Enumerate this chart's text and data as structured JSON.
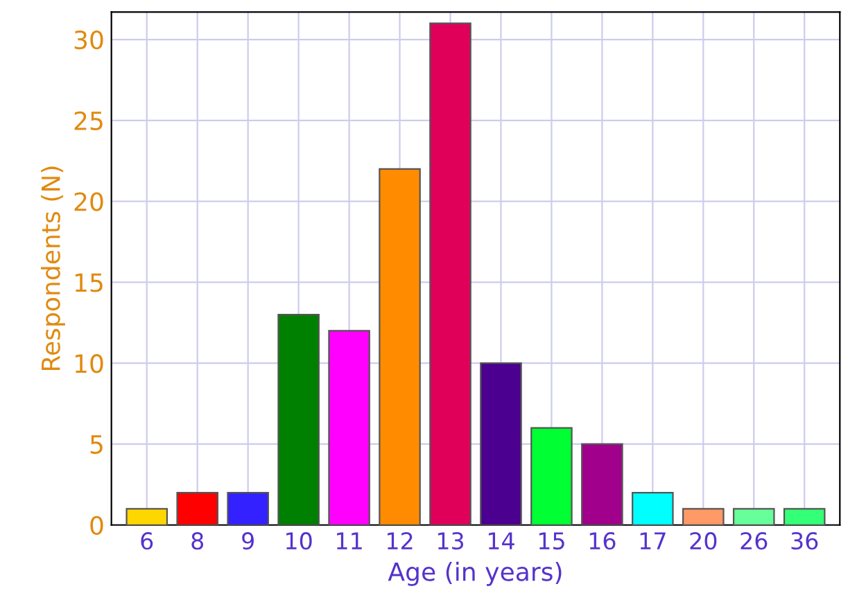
{
  "chart_data": {
    "type": "bar",
    "xlabel": "Age (in years)",
    "ylabel": "Respondents (N)",
    "categories": [
      "6",
      "8",
      "9",
      "10",
      "11",
      "12",
      "13",
      "14",
      "15",
      "16",
      "17",
      "20",
      "26",
      "36"
    ],
    "values": [
      1,
      2,
      2,
      13,
      12,
      22,
      31,
      10,
      6,
      5,
      2,
      1,
      1,
      1
    ],
    "colors": [
      "#ffd700",
      "#ff0000",
      "#3322ff",
      "#008000",
      "#ff00ff",
      "#ff8c00",
      "#e0005a",
      "#4b0090",
      "#00ff33",
      "#a0008c",
      "#00ffff",
      "#ff9966",
      "#66ff99",
      "#33ff77"
    ],
    "ylim": [
      0,
      31.7
    ],
    "yticks": [
      0,
      5,
      10,
      15,
      20,
      25,
      30
    ],
    "grid": true
  }
}
